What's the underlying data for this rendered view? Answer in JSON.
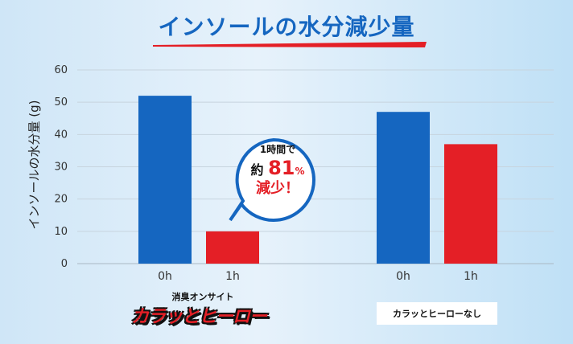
{
  "chart_data": {
    "type": "bar",
    "title": "インソールの水分減少量",
    "ylabel": "インソールの水分量 (g)",
    "ylim": [
      0,
      60
    ],
    "yticks": [
      0,
      10,
      20,
      30,
      40,
      50,
      60
    ],
    "grid": true,
    "groups": [
      {
        "name": "消臭オンサイト カラッとヒーロー",
        "categories": [
          "0h",
          "1h"
        ],
        "values": [
          52,
          10
        ],
        "colors": [
          "#1566c0",
          "#e41f26"
        ]
      },
      {
        "name": "カラッとヒーローなし",
        "categories": [
          "0h",
          "1h"
        ],
        "values": [
          47,
          37
        ],
        "colors": [
          "#1566c0",
          "#e41f26"
        ]
      }
    ],
    "annotation": {
      "line1": "1時間で",
      "line2_prefix": "約",
      "line2_value": "81",
      "line2_unit": "%",
      "line3": "減少！"
    }
  },
  "product": {
    "top_label": "消臭オンサイト",
    "name": "カラッとヒーロー"
  },
  "comparison_label": "カラッとヒーローなし",
  "colors": {
    "blue": "#1566c0",
    "red": "#e41f26"
  }
}
